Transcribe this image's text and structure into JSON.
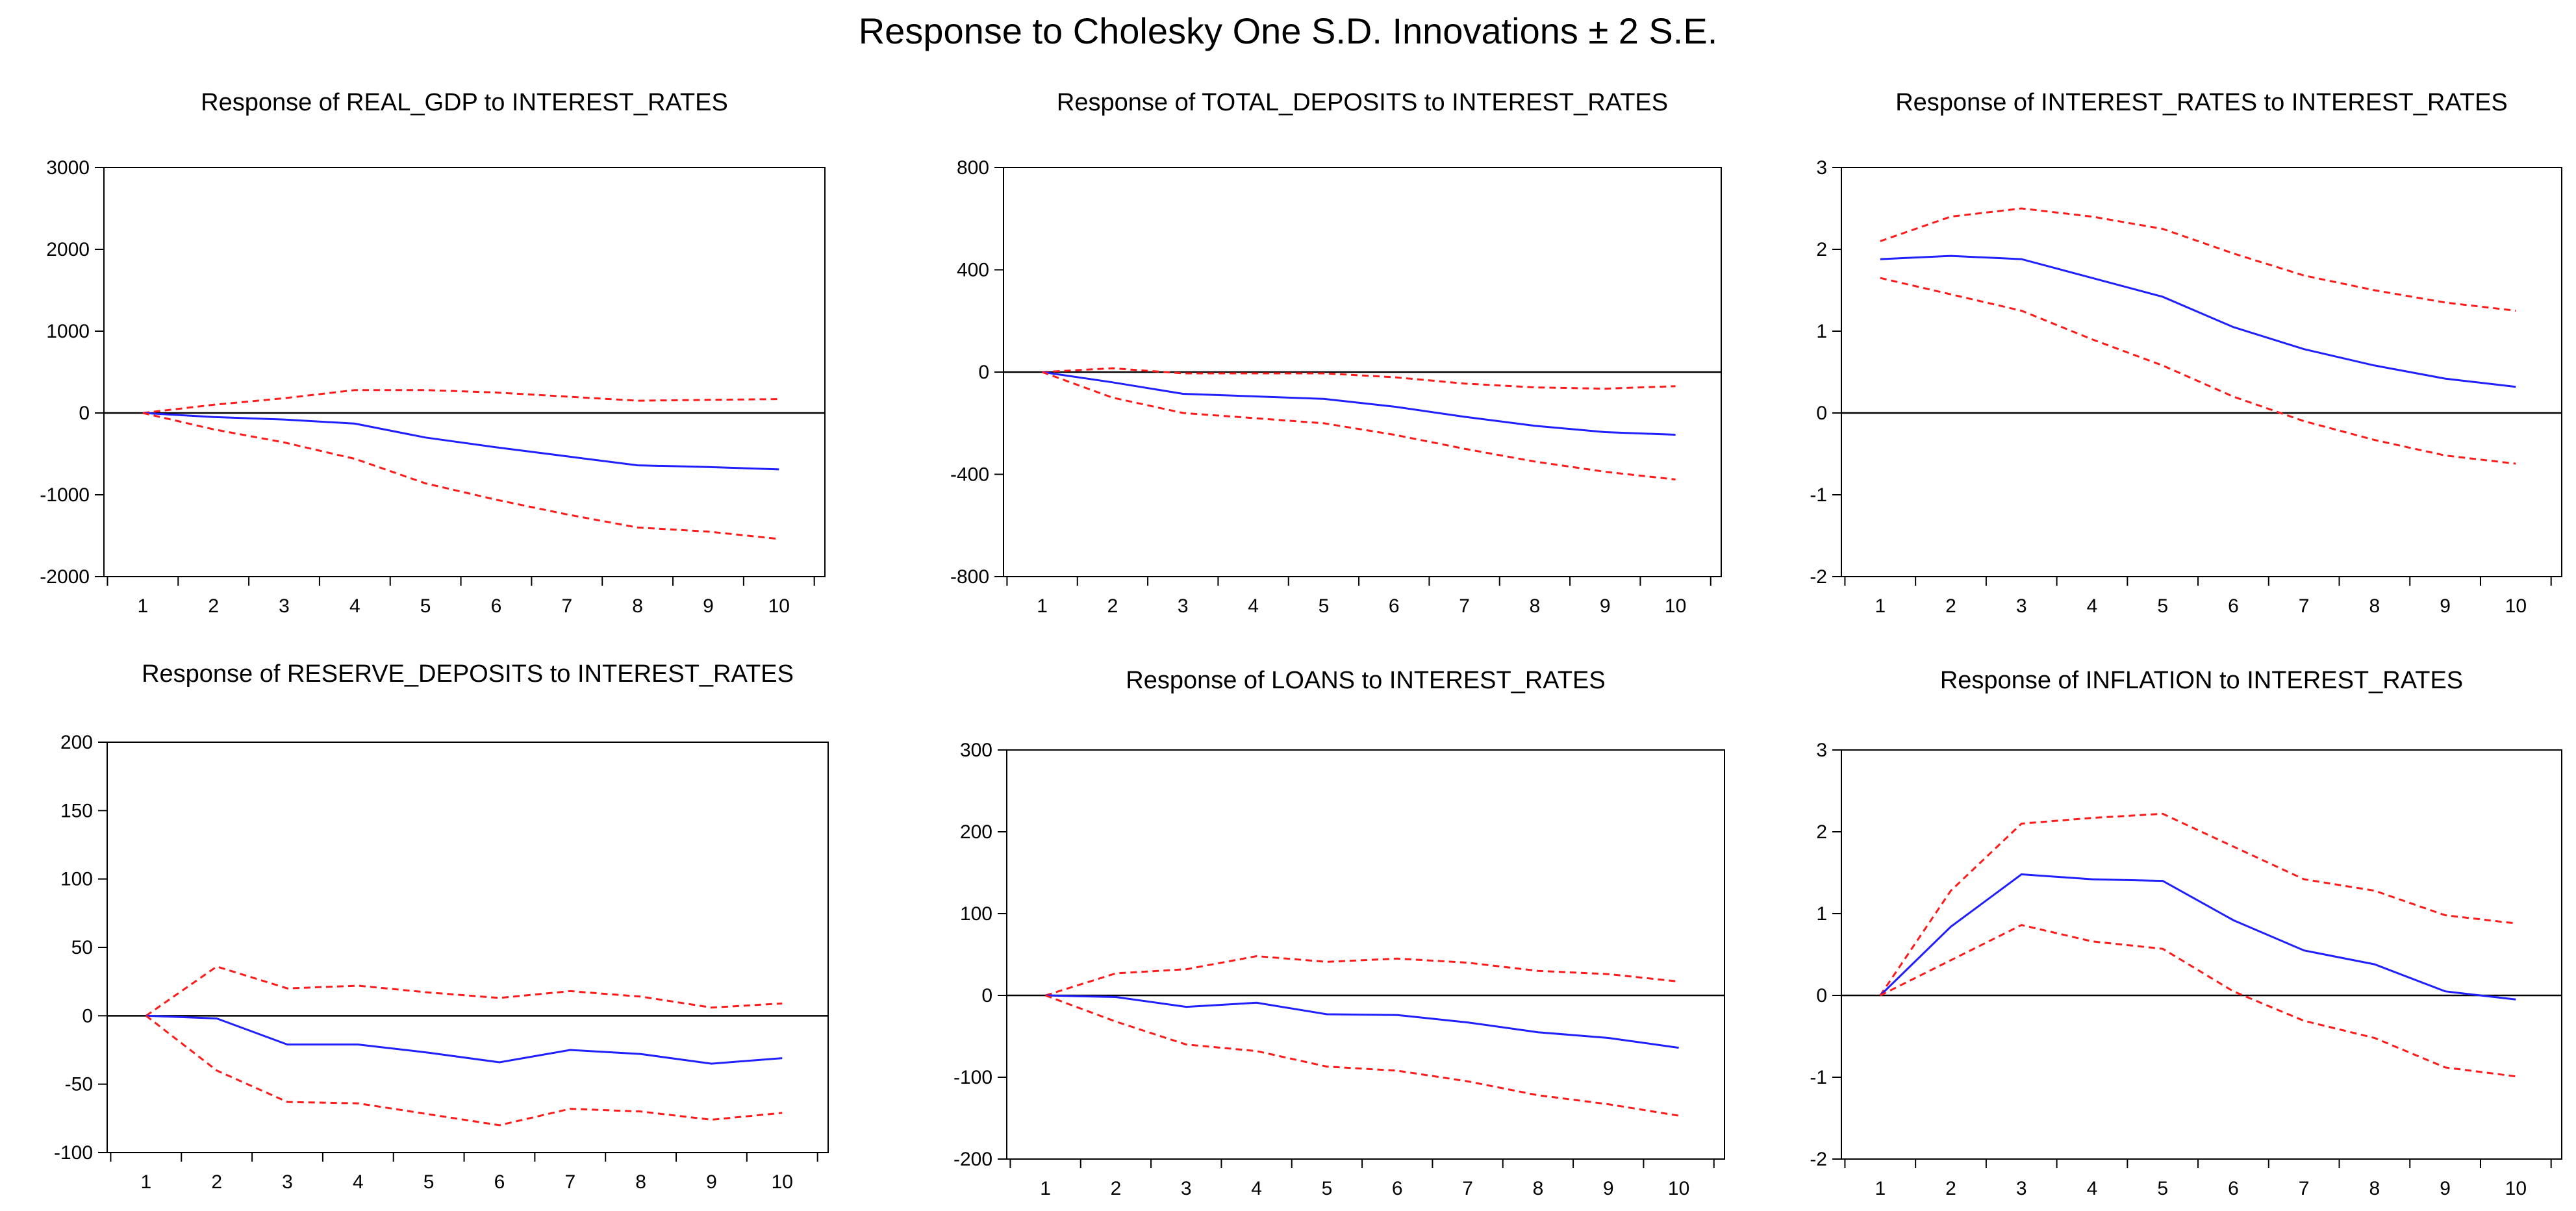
{
  "figure": {
    "title": "Response to Cholesky One S.D. Innovations ± 2 S.E."
  },
  "colors": {
    "response": "#1f1fff",
    "band": "#ff1a1a",
    "axis": "#000000",
    "zero_line": "#000000"
  },
  "chart_data": [
    {
      "type": "line",
      "title": "Response of REAL_GDP to INTEREST_RATES",
      "x": [
        1,
        2,
        3,
        4,
        5,
        6,
        7,
        8,
        9,
        10
      ],
      "ylim": [
        -2000,
        3000
      ],
      "yticks": [
        -2000,
        -1000,
        0,
        1000,
        2000,
        3000
      ],
      "series": [
        {
          "name": "upper",
          "values": [
            0,
            100,
            180,
            280,
            280,
            250,
            200,
            150,
            160,
            170
          ]
        },
        {
          "name": "response",
          "values": [
            0,
            -50,
            -80,
            -130,
            -300,
            -420,
            -530,
            -640,
            -660,
            -690
          ]
        },
        {
          "name": "lower",
          "values": [
            0,
            -200,
            -360,
            -560,
            -860,
            -1060,
            -1240,
            -1400,
            -1450,
            -1540
          ]
        }
      ]
    },
    {
      "type": "line",
      "title": "Response of TOTAL_DEPOSITS to INTEREST_RATES",
      "x": [
        1,
        2,
        3,
        4,
        5,
        6,
        7,
        8,
        9,
        10
      ],
      "ylim": [
        -800,
        800
      ],
      "yticks": [
        -800,
        -400,
        0,
        400,
        800
      ],
      "series": [
        {
          "name": "upper",
          "values": [
            0,
            15,
            -5,
            -5,
            -5,
            -20,
            -45,
            -60,
            -65,
            -55
          ]
        },
        {
          "name": "response",
          "values": [
            0,
            -40,
            -85,
            -95,
            -105,
            -135,
            -175,
            -210,
            -235,
            -245
          ]
        },
        {
          "name": "lower",
          "values": [
            0,
            -100,
            -160,
            -180,
            -200,
            -245,
            -300,
            -350,
            -390,
            -420
          ]
        }
      ]
    },
    {
      "type": "line",
      "title": "Response of INTEREST_RATES to INTEREST_RATES",
      "x": [
        1,
        2,
        3,
        4,
        5,
        6,
        7,
        8,
        9,
        10
      ],
      "ylim": [
        -2,
        3
      ],
      "yticks": [
        -2,
        -1,
        0,
        1,
        2,
        3
      ],
      "series": [
        {
          "name": "upper",
          "values": [
            2.1,
            2.4,
            2.5,
            2.4,
            2.25,
            1.95,
            1.68,
            1.5,
            1.35,
            1.25
          ]
        },
        {
          "name": "response",
          "values": [
            1.88,
            1.92,
            1.88,
            1.65,
            1.42,
            1.05,
            0.78,
            0.58,
            0.42,
            0.32
          ]
        },
        {
          "name": "lower",
          "values": [
            1.65,
            1.45,
            1.25,
            0.9,
            0.58,
            0.2,
            -0.1,
            -0.33,
            -0.52,
            -0.62
          ]
        }
      ]
    },
    {
      "type": "line",
      "title": "Response of RESERVE_DEPOSITS to INTEREST_RATES",
      "x": [
        1,
        2,
        3,
        4,
        5,
        6,
        7,
        8,
        9,
        10
      ],
      "ylim": [
        -100,
        200
      ],
      "yticks": [
        -100,
        -50,
        0,
        50,
        100,
        150,
        200
      ],
      "series": [
        {
          "name": "upper",
          "values": [
            0,
            36,
            20,
            22,
            17,
            13,
            18,
            14,
            6,
            9
          ]
        },
        {
          "name": "response",
          "values": [
            0,
            -2,
            -21,
            -21,
            -27,
            -34,
            -25,
            -28,
            -35,
            -31
          ]
        },
        {
          "name": "lower",
          "values": [
            0,
            -40,
            -63,
            -64,
            -72,
            -80,
            -68,
            -70,
            -76,
            -71
          ]
        }
      ]
    },
    {
      "type": "line",
      "title": "Response of LOANS to INTEREST_RATES",
      "x": [
        1,
        2,
        3,
        4,
        5,
        6,
        7,
        8,
        9,
        10
      ],
      "ylim": [
        -200,
        300
      ],
      "yticks": [
        -200,
        -100,
        0,
        100,
        200,
        300
      ],
      "series": [
        {
          "name": "upper",
          "values": [
            0,
            27,
            32,
            48,
            41,
            45,
            40,
            30,
            26,
            17
          ]
        },
        {
          "name": "response",
          "values": [
            0,
            -2,
            -14,
            -9,
            -23,
            -24,
            -33,
            -45,
            -52,
            -64
          ]
        },
        {
          "name": "lower",
          "values": [
            0,
            -32,
            -60,
            -68,
            -87,
            -92,
            -105,
            -122,
            -133,
            -147
          ]
        }
      ]
    },
    {
      "type": "line",
      "title": "Response of INFLATION to INTEREST_RATES",
      "x": [
        1,
        2,
        3,
        4,
        5,
        6,
        7,
        8,
        9,
        10
      ],
      "ylim": [
        -2,
        3
      ],
      "yticks": [
        -2,
        -1,
        0,
        1,
        2,
        3
      ],
      "series": [
        {
          "name": "upper",
          "values": [
            0,
            1.28,
            2.1,
            2.17,
            2.22,
            1.82,
            1.42,
            1.28,
            0.98,
            0.88
          ]
        },
        {
          "name": "response",
          "values": [
            0,
            0.84,
            1.48,
            1.42,
            1.4,
            0.92,
            0.55,
            0.38,
            0.05,
            -0.05
          ]
        },
        {
          "name": "lower",
          "values": [
            0,
            0.43,
            0.86,
            0.66,
            0.57,
            0.05,
            -0.31,
            -0.52,
            -0.88,
            -0.99
          ]
        }
      ]
    }
  ]
}
